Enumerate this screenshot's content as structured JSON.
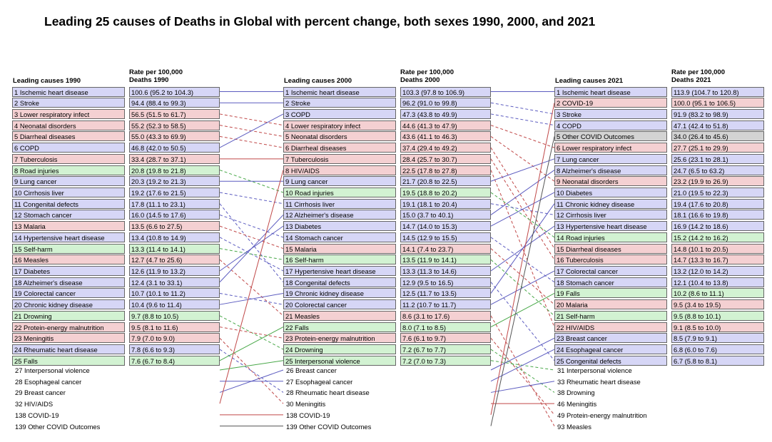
{
  "chart_data": {
    "type": "table",
    "title": "Leading 25 causes of Deaths in Global with percent change, both sexes 1990, 2000, and 2021",
    "colors": {
      "communicable": "#f4d0d2",
      "non_communicable": "#d6d6f6",
      "injuries": "#d2f2d2",
      "covid": "#d3d3d3",
      "border": "#666666",
      "line_communicable": "#c04848",
      "line_non_communicable": "#5c5cc0",
      "line_injuries": "#48a848",
      "line_covid": "#555555"
    },
    "columns": [
      {
        "year": "1990",
        "cause_header": "Leading causes 1990",
        "rate_header_line1": "Rate per 100,000",
        "rate_header_line2": "Deaths 1990",
        "top": [
          {
            "label": "1 Ischemic heart disease",
            "rate": "100.6 (95.2 to 104.3)",
            "group": "non_communicable"
          },
          {
            "label": "2 Stroke",
            "rate": "94.4 (88.4 to 99.3)",
            "group": "non_communicable"
          },
          {
            "label": "3 Lower respiratory infect",
            "rate": "56.5 (51.5 to 61.7)",
            "group": "communicable"
          },
          {
            "label": "4 Neonatal disorders",
            "rate": "55.2 (52.3 to 58.5)",
            "group": "communicable"
          },
          {
            "label": "5 Diarrheal diseases",
            "rate": "55.0 (43.3 to 69.9)",
            "group": "communicable"
          },
          {
            "label": "6 COPD",
            "rate": "46.8 (42.0 to 50.5)",
            "group": "non_communicable"
          },
          {
            "label": "7 Tuberculosis",
            "rate": "33.4 (28.7 to 37.1)",
            "group": "communicable"
          },
          {
            "label": "8 Road injuries",
            "rate": "20.8 (19.8 to 21.8)",
            "group": "injuries"
          },
          {
            "label": "9 Lung cancer",
            "rate": "20.3 (19.2 to 21.3)",
            "group": "non_communicable"
          },
          {
            "label": "10 Cirrhosis liver",
            "rate": "19.2 (17.6 to 21.5)",
            "group": "non_communicable"
          },
          {
            "label": "11 Congenital defects",
            "rate": "17.8 (11.1 to 23.1)",
            "group": "non_communicable"
          },
          {
            "label": "12 Stomach cancer",
            "rate": "16.0 (14.5 to 17.6)",
            "group": "non_communicable"
          },
          {
            "label": "13 Malaria",
            "rate": "13.5 (6.6 to 27.5)",
            "group": "communicable"
          },
          {
            "label": "14 Hypertensive heart disease",
            "rate": "13.4 (10.8 to 14.9)",
            "group": "non_communicable"
          },
          {
            "label": "15 Self-harm",
            "rate": "13.3 (11.4 to 14.1)",
            "group": "injuries"
          },
          {
            "label": "16 Measles",
            "rate": "12.7 (4.7 to 25.6)",
            "group": "communicable"
          },
          {
            "label": "17 Diabetes",
            "rate": "12.6 (11.9 to 13.2)",
            "group": "non_communicable"
          },
          {
            "label": "18 Alzheimer's disease",
            "rate": "12.4 (3.1 to 33.1)",
            "group": "non_communicable"
          },
          {
            "label": "19 Colorectal cancer",
            "rate": "10.7 (10.1 to 11.2)",
            "group": "non_communicable"
          },
          {
            "label": "20 Chronic kidney disease",
            "rate": "10.4 (9.6 to 11.4)",
            "group": "non_communicable"
          },
          {
            "label": "21 Drowning",
            "rate": "9.7 (8.8 to 10.5)",
            "group": "injuries"
          },
          {
            "label": "22 Protein-energy malnutrition",
            "rate": "9.5 (8.1 to 11.6)",
            "group": "communicable"
          },
          {
            "label": "23 Meningitis",
            "rate": "7.9 (7.0 to 9.0)",
            "group": "communicable"
          },
          {
            "label": "24 Rheumatic heart disease",
            "rate": "7.8 (6.6 to 9.3)",
            "group": "non_communicable"
          },
          {
            "label": "25 Falls",
            "rate": "7.6 (6.7 to 8.4)",
            "group": "injuries"
          }
        ],
        "extra": [
          "27 Interpersonal violence",
          "28 Esophageal cancer",
          "29 Breast cancer",
          "32 HIV/AIDS",
          "138 COVID-19",
          "139 Other COVID Outcomes"
        ]
      },
      {
        "year": "2000",
        "cause_header": "Leading causes 2000",
        "rate_header_line1": "Rate per 100,000",
        "rate_header_line2": "Deaths 2000",
        "top": [
          {
            "label": "1 Ischemic heart disease",
            "rate": "103.3 (97.8 to 106.9)",
            "group": "non_communicable"
          },
          {
            "label": "2 Stroke",
            "rate": "96.2 (91.0 to 99.8)",
            "group": "non_communicable"
          },
          {
            "label": "3 COPD",
            "rate": "47.3 (43.8 to 49.9)",
            "group": "non_communicable"
          },
          {
            "label": "4 Lower respiratory infect",
            "rate": "44.6 (41.3 to 47.9)",
            "group": "communicable"
          },
          {
            "label": "5 Neonatal disorders",
            "rate": "43.6 (41.1 to 46.3)",
            "group": "communicable"
          },
          {
            "label": "6 Diarrheal diseases",
            "rate": "37.4 (29.4 to 49.2)",
            "group": "communicable"
          },
          {
            "label": "7 Tuberculosis",
            "rate": "28.4 (25.7 to 30.7)",
            "group": "communicable"
          },
          {
            "label": "8 HIV/AIDS",
            "rate": "22.5 (17.8 to 27.8)",
            "group": "communicable"
          },
          {
            "label": "9 Lung cancer",
            "rate": "21.7 (20.8 to 22.5)",
            "group": "non_communicable"
          },
          {
            "label": "10 Road injuries",
            "rate": "19.5 (18.8 to 20.2)",
            "group": "injuries"
          },
          {
            "label": "11 Cirrhosis liver",
            "rate": "19.1 (18.1 to 20.4)",
            "group": "non_communicable"
          },
          {
            "label": "12 Alzheimer's disease",
            "rate": "15.0 (3.7 to 40.1)",
            "group": "non_communicable"
          },
          {
            "label": "13 Diabetes",
            "rate": "14.7 (14.0 to 15.3)",
            "group": "non_communicable"
          },
          {
            "label": "14 Stomach cancer",
            "rate": "14.5 (12.9 to 15.5)",
            "group": "non_communicable"
          },
          {
            "label": "15 Malaria",
            "rate": "14.1 (7.4 to 23.7)",
            "group": "communicable"
          },
          {
            "label": "16 Self-harm",
            "rate": "13.5 (11.9 to 14.1)",
            "group": "injuries"
          },
          {
            "label": "17 Hypertensive heart disease",
            "rate": "13.3 (11.3 to 14.6)",
            "group": "non_communicable"
          },
          {
            "label": "18 Congenital defects",
            "rate": "12.9 (9.5 to 16.5)",
            "group": "non_communicable"
          },
          {
            "label": "19 Chronic kidney disease",
            "rate": "12.5 (11.7 to 13.5)",
            "group": "non_communicable"
          },
          {
            "label": "20 Colorectal cancer",
            "rate": "11.2 (10.7 to 11.7)",
            "group": "non_communicable"
          },
          {
            "label": "21 Measles",
            "rate": "8.6 (3.1 to 17.6)",
            "group": "communicable"
          },
          {
            "label": "22 Falls",
            "rate": "8.0 (7.1 to 8.5)",
            "group": "injuries"
          },
          {
            "label": "23 Protein-energy malnutrition",
            "rate": "7.6 (6.1 to 9.7)",
            "group": "communicable"
          },
          {
            "label": "24 Drowning",
            "rate": "7.2 (6.7 to 7.7)",
            "group": "injuries"
          },
          {
            "label": "25 Interpersonal violence",
            "rate": "7.2 (7.0 to 7.3)",
            "group": "injuries"
          }
        ],
        "extra": [
          "26 Breast cancer",
          "27 Esophageal cancer",
          "28 Rheumatic heart disease",
          "30 Meningitis",
          "138 COVID-19",
          "139 Other COVID Outcomes"
        ]
      },
      {
        "year": "2021",
        "cause_header": "Leading causes 2021",
        "rate_header_line1": "Rate per 100,000",
        "rate_header_line2": "Deaths 2021",
        "top": [
          {
            "label": "1 Ischemic heart disease",
            "rate": "113.9 (104.7 to 120.8)",
            "group": "non_communicable"
          },
          {
            "label": "2 COVID-19",
            "rate": "100.0 (95.1 to 106.5)",
            "group": "communicable"
          },
          {
            "label": "3 Stroke",
            "rate": "91.9 (83.2 to 98.9)",
            "group": "non_communicable"
          },
          {
            "label": "4 COPD",
            "rate": "47.1 (42.4 to 51.8)",
            "group": "non_communicable"
          },
          {
            "label": "5 Other COVID Outcomes",
            "rate": "34.0 (26.4 to 45.6)",
            "group": "covid"
          },
          {
            "label": "6 Lower respiratory infect",
            "rate": "27.7 (25.1 to 29.9)",
            "group": "communicable"
          },
          {
            "label": "7 Lung cancer",
            "rate": "25.6 (23.1 to 28.1)",
            "group": "non_communicable"
          },
          {
            "label": "8 Alzheimer's disease",
            "rate": "24.7 (6.5 to 63.2)",
            "group": "non_communicable"
          },
          {
            "label": "9 Neonatal disorders",
            "rate": "23.2 (19.9 to 26.9)",
            "group": "communicable"
          },
          {
            "label": "10 Diabetes",
            "rate": "21.0 (19.5 to 22.3)",
            "group": "non_communicable"
          },
          {
            "label": "11 Chronic kidney disease",
            "rate": "19.4 (17.6 to 20.8)",
            "group": "non_communicable"
          },
          {
            "label": "12 Cirrhosis liver",
            "rate": "18.1 (16.6 to 19.8)",
            "group": "non_communicable"
          },
          {
            "label": "13 Hypertensive heart disease",
            "rate": "16.9 (14.2 to 18.6)",
            "group": "non_communicable"
          },
          {
            "label": "14 Road injuries",
            "rate": "15.2 (14.2 to 16.2)",
            "group": "injuries"
          },
          {
            "label": "15 Diarrheal diseases",
            "rate": "14.8 (10.1 to 20.5)",
            "group": "communicable"
          },
          {
            "label": "16 Tuberculosis",
            "rate": "14.7 (13.3 to 16.7)",
            "group": "communicable"
          },
          {
            "label": "17 Colorectal cancer",
            "rate": "13.2 (12.0 to 14.2)",
            "group": "non_communicable"
          },
          {
            "label": "18 Stomach cancer",
            "rate": "12.1 (10.4 to 13.8)",
            "group": "non_communicable"
          },
          {
            "label": "19 Falls",
            "rate": "10.2 (8.6 to 11.1)",
            "group": "injuries"
          },
          {
            "label": "20 Malaria",
            "rate": "9.5 (3.4 to 19.5)",
            "group": "communicable"
          },
          {
            "label": "21 Self-harm",
            "rate": "9.5 (8.8 to 10.1)",
            "group": "injuries"
          },
          {
            "label": "22 HIV/AIDS",
            "rate": "9.1 (8.5 to 10.0)",
            "group": "communicable"
          },
          {
            "label": "23 Breast cancer",
            "rate": "8.5 (7.9 to 9.1)",
            "group": "non_communicable"
          },
          {
            "label": "24 Esophageal cancer",
            "rate": "6.8 (6.0 to 7.6)",
            "group": "non_communicable"
          },
          {
            "label": "25 Congenital defects",
            "rate": "6.7 (5.8 to 8.1)",
            "group": "non_communicable"
          }
        ],
        "extra": [
          "31 Interpersonal violence",
          "33 Rheumatic heart disease",
          "38 Drowning",
          "46 Meningitis",
          "49 Protein-energy malnutrition",
          "93 Measles"
        ]
      }
    ]
  }
}
